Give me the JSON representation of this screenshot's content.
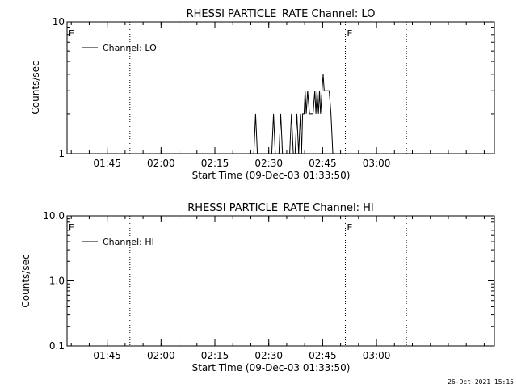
{
  "footer_timestamp": "26-Oct-2021 15:15",
  "chart_data": [
    {
      "type": "line",
      "title": "RHESSI PARTICLE_RATE Channel: LO",
      "xlabel": "Start Time (09-Dec-03 01:33:50)",
      "ylabel": "Counts/sec",
      "y_scale": "log",
      "ylim": [
        1,
        10
      ],
      "y_ticks": [
        {
          "v": 1,
          "label": "1"
        },
        {
          "v": 10,
          "label": "10"
        }
      ],
      "xlim_minutes": [
        0,
        119
      ],
      "x_ticks": [
        {
          "v": 11.17,
          "label": "01:45"
        },
        {
          "v": 26.17,
          "label": "02:00"
        },
        {
          "v": 41.17,
          "label": "02:15"
        },
        {
          "v": 56.17,
          "label": "02:30"
        },
        {
          "v": 71.17,
          "label": "02:45"
        },
        {
          "v": 86.17,
          "label": "03:00"
        }
      ],
      "vlines": [
        17.5,
        77.5,
        94.5
      ],
      "markers": [
        {
          "x": 0,
          "label": "E"
        },
        {
          "x": 77.5,
          "label": "E"
        }
      ],
      "legend": {
        "position": "top-left",
        "entries": [
          "Channel: LO"
        ]
      },
      "series": [
        {
          "name": "Channel: LO",
          "x": [
            52.0,
            52.5,
            53.0,
            53.6,
            54.0,
            57.0,
            57.5,
            58.0,
            59.0,
            59.5,
            60.0,
            62.0,
            62.5,
            63.0,
            63.5,
            64.0,
            64.5,
            65.0,
            65.3,
            65.6,
            66.0,
            66.3,
            66.6,
            67.0,
            67.5,
            68.0,
            68.5,
            69.0,
            69.3,
            69.6,
            70.0,
            70.3,
            70.6,
            71.0,
            71.3,
            71.6,
            72.0,
            72.3,
            72.6,
            73.0,
            73.5,
            74.0,
            75.0
          ],
          "y": [
            1,
            2,
            1,
            1,
            1,
            1,
            2,
            1,
            1,
            2,
            1,
            1,
            2,
            1,
            1,
            2,
            1,
            2,
            1,
            2,
            2,
            3,
            2,
            3,
            2,
            2,
            2,
            3,
            2,
            3,
            2,
            3,
            2,
            3,
            4,
            3,
            3,
            3,
            3,
            3,
            2,
            1,
            1
          ]
        }
      ]
    },
    {
      "type": "line",
      "title": "RHESSI PARTICLE_RATE Channel: HI",
      "xlabel": "Start Time (09-Dec-03 01:33:50)",
      "ylabel": "Counts/sec",
      "y_scale": "log",
      "ylim": [
        0.1,
        10
      ],
      "y_ticks": [
        {
          "v": 0.1,
          "label": "0.1"
        },
        {
          "v": 1,
          "label": "1.0"
        },
        {
          "v": 10,
          "label": "10.0"
        }
      ],
      "xlim_minutes": [
        0,
        119
      ],
      "x_ticks": [
        {
          "v": 11.17,
          "label": "01:45"
        },
        {
          "v": 26.17,
          "label": "02:00"
        },
        {
          "v": 41.17,
          "label": "02:15"
        },
        {
          "v": 56.17,
          "label": "02:30"
        },
        {
          "v": 71.17,
          "label": "02:45"
        },
        {
          "v": 86.17,
          "label": "03:00"
        }
      ],
      "vlines": [
        17.5,
        77.5,
        94.5
      ],
      "markers": [
        {
          "x": 0,
          "label": "E"
        },
        {
          "x": 77.5,
          "label": "E"
        }
      ],
      "legend": {
        "position": "top-left",
        "entries": [
          "Channel: HI"
        ]
      },
      "series": [
        {
          "name": "Channel: HI",
          "x": [],
          "y": []
        }
      ]
    }
  ]
}
